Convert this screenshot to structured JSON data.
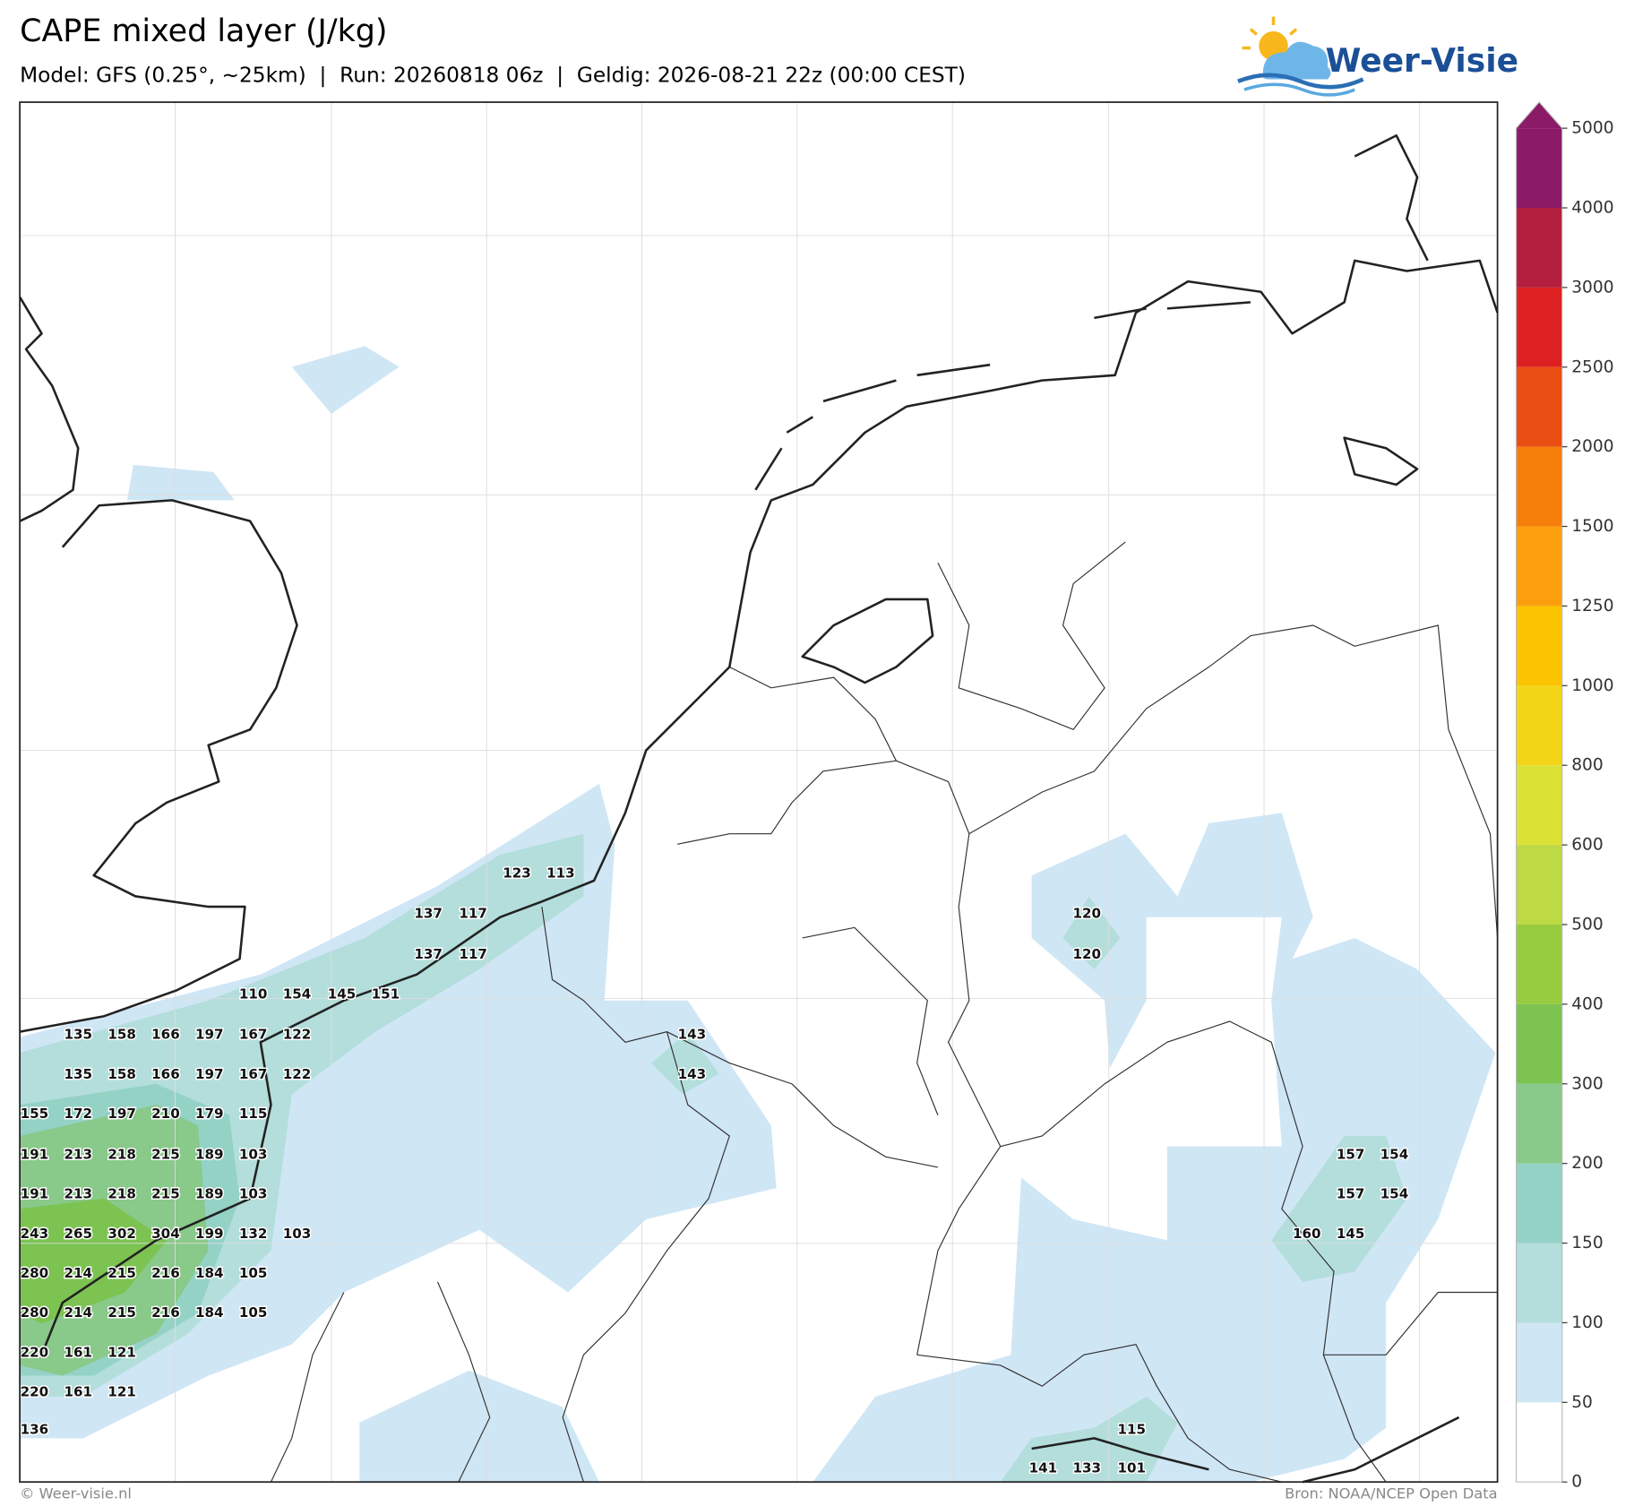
{
  "header": {
    "title": "CAPE mixed layer (J/kg)",
    "subtitle": "Model: GFS (0.25°, ~25km)  |  Run: 20260818 06z  |  Geldig: 2026-08-21 22z (00:00 CEST)",
    "logo": "Weer-Visie"
  },
  "colorbar": {
    "levels": [
      0,
      50,
      100,
      150,
      200,
      300,
      400,
      500,
      600,
      800,
      1000,
      1250,
      1500,
      2000,
      2500,
      3000,
      4000,
      5000
    ],
    "colors": [
      "#ffffff",
      "#cfe6f5",
      "#b3dedb",
      "#94d2c6",
      "#89c98a",
      "#7cc352",
      "#98cc40",
      "#bdd944",
      "#dce136",
      "#f3d518",
      "#fcc300",
      "#fb9f0f",
      "#f67f0b",
      "#ea4e12",
      "#dd2121",
      "#b41f3f",
      "#8b1a67"
    ],
    "extend_color": "#8b1a67"
  },
  "value_labels": [
    [
      123,
      113
    ],
    [
      137,
      117,
      120
    ],
    [
      137,
      117,
      120
    ],
    [
      110,
      154,
      145,
      151
    ],
    [
      135,
      158,
      166,
      197,
      167,
      122,
      143
    ],
    [
      135,
      158,
      166,
      197,
      167,
      122,
      143
    ],
    [
      155,
      172,
      197,
      210,
      179,
      115
    ],
    [
      191,
      213,
      218,
      215,
      189,
      103,
      157,
      154
    ],
    [
      191,
      213,
      218,
      215,
      189,
      103,
      157,
      154
    ],
    [
      243,
      265,
      302,
      304,
      199,
      132,
      103,
      160,
      145
    ],
    [
      280,
      214,
      215,
      216,
      184,
      105
    ],
    [
      280,
      214,
      215,
      216,
      184,
      105
    ],
    [
      220,
      161,
      121
    ],
    [
      220,
      161,
      121
    ],
    [
      136,
      115
    ],
    [
      141,
      133,
      101
    ]
  ],
  "footer": {
    "left": "© Weer-visie.nl",
    "right": "Bron: NOAA/NCEP Open Data"
  }
}
